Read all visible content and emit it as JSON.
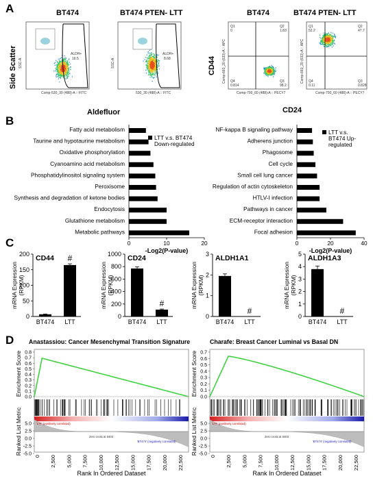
{
  "panelA": {
    "letter": "A",
    "flow": {
      "title_left": "BT474",
      "title_right": "BT474 PTEN- LTT",
      "ylabel": "Side Scatter",
      "xlabel": "Aldefluor",
      "gate_label": "ALDH+",
      "gate_value_left": "16.5",
      "gate_value_right": "8.68",
      "xaxis_left": "Comp-530_30 (488)-A :: FITC",
      "xaxis_right": "530_30 (488)-A :: FITC",
      "yaxis": "SSC-A"
    },
    "cd": {
      "title_left": "BT474",
      "title_right": "BT474 PTEN- LTT",
      "ylabel": "CD44",
      "xlabel": "CD24",
      "xaxis": "Comp-700_60 (488)-A :: PECY7",
      "yaxis": "Comp-660_20 (633)-A :: APC",
      "left_quads": [
        "Q1\n0",
        "Q2\n1.83",
        "Q4\n0.814",
        "Q3\n98.2"
      ],
      "right_quads": [
        "Q1\n52.2",
        "Q2\n47.7",
        "Q4\n0.11",
        "Q3\n0.828"
      ]
    }
  },
  "panelB": {
    "letter": "B",
    "left": {
      "legend": [
        "LTT v.s. BT474",
        "Down-regulated"
      ],
      "xlabel": "-Log2(P-value)",
      "ticks": [
        "0",
        "10",
        "20"
      ],
      "categories": [
        "Fatty acid metabolism",
        "Taurine and hypotaurine metabolism",
        "Oxidative phosphorylation",
        "Cyanoamino acid metabolism",
        "Phosphatidylinositol signaling system",
        "Peroxisome",
        "Synthesis and degradation of ketone bodies",
        "Endocytosis",
        "Glutathione metabolism",
        "Metabolic pathways"
      ],
      "values": [
        4.5,
        5.2,
        5.7,
        6.5,
        7.0,
        7.2,
        7.6,
        10.0,
        10.0,
        16.0
      ]
    },
    "right": {
      "legend": [
        "LTT v.s.",
        "BT474 Up-",
        "regulated"
      ],
      "xlabel": "-Log2(P-value)",
      "ticks": [
        "0",
        "20",
        "40"
      ],
      "categories": [
        "NF-kappa B signaling pathway",
        "Adherens junction",
        "Phagosome",
        "Cell cycle",
        "Small cell lung cancer",
        "Regulation of actin cytoskeleton",
        "HTLV-I infection",
        "Pathways in cancer",
        "ECM-receptor interaction",
        "Focal adhesion"
      ],
      "values": [
        9,
        9.5,
        10,
        11,
        12,
        13.5,
        13.5,
        17.5,
        27.5,
        35
      ]
    }
  },
  "panelC": {
    "letter": "C",
    "ylabel": [
      "mRNA Expression",
      "(RPKM)"
    ],
    "charts": [
      {
        "title": "CD44",
        "ticks": [
          "0",
          "50",
          "100",
          "150",
          "200"
        ],
        "ymax": 200,
        "cats": [
          "BT474",
          "LTT"
        ],
        "values": [
          7,
          165
        ],
        "err": [
          1,
          4
        ],
        "marks": [
          "",
          "#"
        ]
      },
      {
        "title": "CD24",
        "ticks": [
          "0",
          "200",
          "400",
          "600",
          "800",
          "1000"
        ],
        "ymax": 1000,
        "cats": [
          "BT474",
          "LTT"
        ],
        "values": [
          770,
          110
        ],
        "err": [
          25,
          10
        ],
        "marks": [
          "",
          "#"
        ]
      },
      {
        "title": "ALDH1A1",
        "ticks": [
          "0",
          "1",
          "2",
          "3"
        ],
        "ymax": 3,
        "cats": [
          "BT474",
          "LTT"
        ],
        "values": [
          1.95,
          0
        ],
        "err": [
          0.1,
          0
        ],
        "marks": [
          "",
          "#"
        ]
      },
      {
        "title": "ALDH1A3",
        "ticks": [
          "0",
          "1",
          "2",
          "3",
          "4",
          "5"
        ],
        "ymax": 5,
        "cats": [
          "BT474",
          "LTT"
        ],
        "values": [
          3.8,
          0
        ],
        "err": [
          0.25,
          0
        ],
        "marks": [
          "",
          "#"
        ]
      }
    ]
  },
  "panelD": {
    "letter": "D",
    "left": {
      "title": "Anastassiou: Cancer Mesenchymal Transition Signature",
      "es_label": "Enrichment Score",
      "rl_label": "Ranked List Metric",
      "es_ticks": [
        "0.8",
        "0.7",
        "0.6",
        "0.5",
        "0.4",
        "0.3",
        "0.2",
        "0.1",
        "0.0"
      ],
      "rl_ticks": [
        "5.0",
        "2.5",
        "0.0",
        "-2.5",
        "-5.0"
      ],
      "x_ticks": [
        "0",
        "2,500",
        "5,000",
        "7,500",
        "10,000",
        "12,500",
        "15,000",
        "17,500",
        "20,000",
        "22,500"
      ],
      "xlabel": "Rank In Ordered Dataset",
      "pos_label": "'LTT' (positively correlated)",
      "neg_label": "'BT474' (negatively correlated)",
      "zero_label": "Zero cross at 8403"
    },
    "right": {
      "title": "Charafe: Breast Cancer Luminal vs Basal DN",
      "es_label": "Enrichment Score",
      "rl_label": "Ranked List Metric",
      "es_ticks": [
        "0.7",
        "0.6",
        "0.5",
        "0.4",
        "0.3",
        "0.2",
        "0.1",
        "0.0"
      ],
      "rl_ticks": [
        "5.0",
        "2.5",
        "0.0",
        "-2.5",
        "-5.0"
      ],
      "x_ticks": [
        "0",
        "2,500",
        "5,000",
        "7,500",
        "10,000",
        "12,500",
        "15,000",
        "17,500",
        "20,000",
        "22,500"
      ],
      "xlabel": "Rank In Ordered Dataset",
      "pos_label": "'LTT' (positively correlated)",
      "neg_label": "'BT474' (negatively correlated)",
      "zero_label": "Zero cross at 8403"
    }
  },
  "chart_data": [
    {
      "type": "bar",
      "title": "",
      "categories": [
        "Fatty acid metabolism",
        "Taurine and hypotaurine metabolism",
        "Oxidative phosphorylation",
        "Cyanoamino acid metabolism",
        "Phosphatidylinositol signaling system",
        "Peroxisome",
        "Synthesis and degradation of ketone bodies",
        "Endocytosis",
        "Glutathione metabolism",
        "Metabolic pathways"
      ],
      "values": [
        4.5,
        5.2,
        5.7,
        6.5,
        7.0,
        7.2,
        7.6,
        10.0,
        10.0,
        16.0
      ],
      "xlabel": "-Log2(P-value)",
      "xlim": [
        0,
        20
      ]
    },
    {
      "type": "bar",
      "title": "",
      "categories": [
        "NF-kappa B signaling pathway",
        "Adherens junction",
        "Phagosome",
        "Cell cycle",
        "Small cell lung cancer",
        "Regulation of actin cytoskeleton",
        "HTLV-I infection",
        "Pathways in cancer",
        "ECM-receptor interaction",
        "Focal adhesion"
      ],
      "values": [
        9,
        9.5,
        10,
        11,
        12,
        13.5,
        13.5,
        17.5,
        27.5,
        35
      ],
      "xlabel": "-Log2(P-value)",
      "xlim": [
        0,
        40
      ]
    },
    {
      "type": "bar",
      "title": "CD44",
      "categories": [
        "BT474",
        "LTT"
      ],
      "values": [
        7,
        165
      ],
      "ylim": [
        0,
        200
      ]
    },
    {
      "type": "bar",
      "title": "CD24",
      "categories": [
        "BT474",
        "LTT"
      ],
      "values": [
        770,
        110
      ],
      "ylim": [
        0,
        1000
      ]
    },
    {
      "type": "bar",
      "title": "ALDH1A1",
      "categories": [
        "BT474",
        "LTT"
      ],
      "values": [
        1.95,
        0
      ],
      "ylim": [
        0,
        3
      ]
    },
    {
      "type": "bar",
      "title": "ALDH1A3",
      "categories": [
        "BT474",
        "LTT"
      ],
      "values": [
        3.8,
        0
      ],
      "ylim": [
        0,
        5
      ]
    }
  ]
}
